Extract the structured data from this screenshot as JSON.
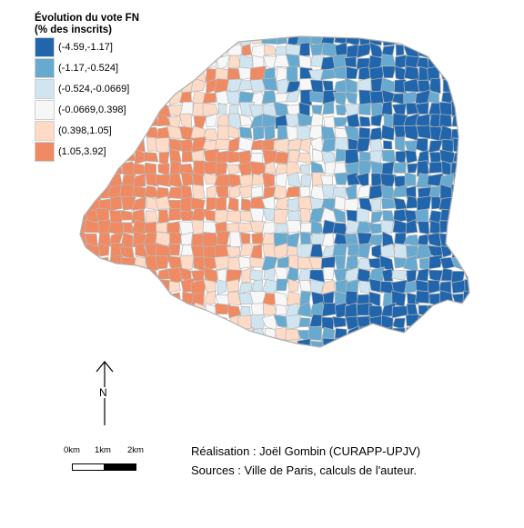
{
  "map": {
    "subject": "Paris bureaux de vote",
    "border_color": "#b8b8b8",
    "outline_color": "#b0b0b0"
  },
  "legend": {
    "title_line1": "Évolution du vote FN",
    "title_line2": "(% des inscrits)",
    "classes": [
      {
        "label": "(-4.59,-1.17]",
        "color": "#2166ac"
      },
      {
        "label": "(-1.17,-0.524]",
        "color": "#67a9cf"
      },
      {
        "label": "(-0.524,-0.0669]",
        "color": "#d1e5f0"
      },
      {
        "label": "(-0.0669,0.398]",
        "color": "#f7f7f7"
      },
      {
        "label": "(0.398,1.05]",
        "color": "#fddbc7"
      },
      {
        "label": "(1.05,3.92]",
        "color": "#ef8a62"
      }
    ]
  },
  "north_arrow": {
    "label": "N",
    "icon": "north-arrow-icon"
  },
  "scale_bar": {
    "ticks": [
      "0km",
      "1km",
      "2km"
    ],
    "colors": [
      "#ffffff",
      "#000000"
    ]
  },
  "credits": {
    "line1": "Réalisation : Joël Gombin (CURAPP-UPJV)",
    "line2": "Sources : Ville de Paris, calculs de l'auteur."
  }
}
